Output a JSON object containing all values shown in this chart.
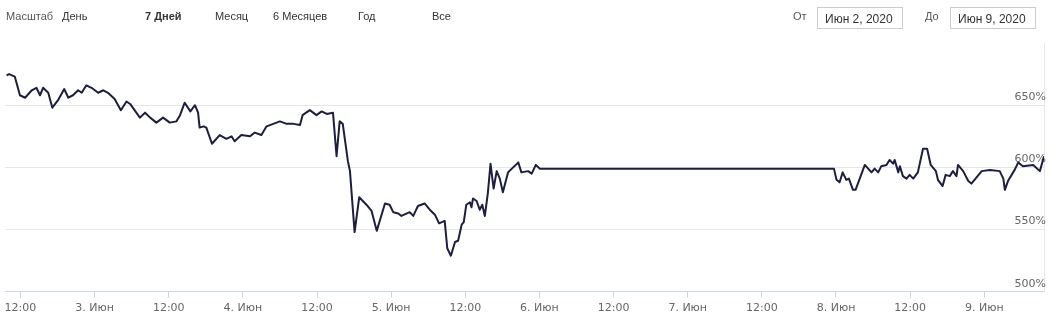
{
  "chart_data": {
    "type": "line",
    "color": "#1c1f3d",
    "grid": "y",
    "xlim": [
      "2020-06-02T09:30",
      "2020-06-09T09:40"
    ],
    "ylim": [
      500,
      700
    ],
    "xticks": [
      {
        "value": "2020-06-02T12:00",
        "label": "12:00"
      },
      {
        "value": "2020-06-03T00:00",
        "label": "3. Июн"
      },
      {
        "value": "2020-06-03T12:00",
        "label": "12:00"
      },
      {
        "value": "2020-06-04T00:00",
        "label": "4. Июн"
      },
      {
        "value": "2020-06-04T12:00",
        "label": "12:00"
      },
      {
        "value": "2020-06-05T00:00",
        "label": "5. Июн"
      },
      {
        "value": "2020-06-05T12:00",
        "label": "12:00"
      },
      {
        "value": "2020-06-06T00:00",
        "label": "6. Июн"
      },
      {
        "value": "2020-06-06T12:00",
        "label": "12:00"
      },
      {
        "value": "2020-06-07T00:00",
        "label": "7. Июн"
      },
      {
        "value": "2020-06-07T12:00",
        "label": "12:00"
      },
      {
        "value": "2020-06-08T00:00",
        "label": "8. Июн"
      },
      {
        "value": "2020-06-08T12:00",
        "label": "12:00"
      },
      {
        "value": "2020-06-09T00:00",
        "label": "9. Июн"
      }
    ],
    "yticks": [
      {
        "value": 500,
        "label": "500%"
      },
      {
        "value": 550,
        "label": "550%"
      },
      {
        "value": 600,
        "label": "600%"
      },
      {
        "value": 650,
        "label": "650%"
      }
    ],
    "annotations": [
      "Масштаб",
      "День",
      "7 Дней",
      "Месяц",
      "6 Месяцев",
      "Год",
      "Все",
      "От",
      "Июн 2, 2020",
      "До",
      "Июн 9, 2020"
    ],
    "x": [
      "2020-06-02T09:45",
      "2020-06-02T10:10",
      "2020-06-02T11:05",
      "2020-06-02T11:55",
      "2020-06-02T12:45",
      "2020-06-02T13:50",
      "2020-06-02T14:35",
      "2020-06-02T15:10",
      "2020-06-02T15:40",
      "2020-06-02T16:30",
      "2020-06-02T17:10",
      "2020-06-02T18:05",
      "2020-06-02T19:05",
      "2020-06-02T19:45",
      "2020-06-02T20:30",
      "2020-06-02T21:20",
      "2020-06-02T21:55",
      "2020-06-02T22:40",
      "2020-06-02T23:30",
      "2020-06-03T00:35",
      "2020-06-03T01:25",
      "2020-06-03T02:10",
      "2020-06-03T03:15",
      "2020-06-03T04:15",
      "2020-06-03T05:10",
      "2020-06-03T05:45",
      "2020-06-03T07:20",
      "2020-06-03T08:10",
      "2020-06-03T09:00",
      "2020-06-03T10:00",
      "2020-06-03T11:05",
      "2020-06-03T12:10",
      "2020-06-03T13:15",
      "2020-06-03T13:50",
      "2020-06-03T14:35",
      "2020-06-03T15:30",
      "2020-06-03T16:15",
      "2020-06-03T16:45",
      "2020-06-03T17:00",
      "2020-06-03T17:40",
      "2020-06-03T18:05",
      "2020-06-03T19:00",
      "2020-06-03T20:15",
      "2020-06-03T21:20",
      "2020-06-03T22:10",
      "2020-06-03T22:40",
      "2020-06-03T23:45",
      "2020-06-04T01:10",
      "2020-06-04T01:55",
      "2020-06-04T03:00",
      "2020-06-04T03:50",
      "2020-06-04T04:55",
      "2020-06-04T06:00",
      "2020-06-04T07:05",
      "2020-06-04T08:10",
      "2020-06-04T09:15",
      "2020-06-04T09:40",
      "2020-06-04T10:50",
      "2020-06-04T11:55",
      "2020-06-04T12:45",
      "2020-06-04T13:35",
      "2020-06-04T14:35",
      "2020-06-04T15:10",
      "2020-06-04T15:40",
      "2020-06-04T16:10",
      "2020-06-04T17:00",
      "2020-06-04T17:20",
      "2020-06-04T18:05",
      "2020-06-04T18:50",
      "2020-06-04T20:00",
      "2020-06-04T20:50",
      "2020-06-04T21:40",
      "2020-06-04T23:00",
      "2020-06-04T23:45",
      "2020-06-05T00:20",
      "2020-06-05T01:10",
      "2020-06-05T01:40",
      "2020-06-05T03:00",
      "2020-06-05T03:35",
      "2020-06-05T04:20",
      "2020-06-05T05:25",
      "2020-06-05T06:15",
      "2020-06-05T07:05",
      "2020-06-05T07:45",
      "2020-06-05T08:40",
      "2020-06-05T09:05",
      "2020-06-05T09:40",
      "2020-06-05T10:20",
      "2020-06-05T10:50",
      "2020-06-05T11:25",
      "2020-06-05T11:45",
      "2020-06-05T12:10",
      "2020-06-05T12:45",
      "2020-06-05T13:00",
      "2020-06-05T13:15",
      "2020-06-05T13:50",
      "2020-06-05T14:20",
      "2020-06-05T14:45",
      "2020-06-05T15:10",
      "2020-06-05T15:40",
      "2020-06-05T16:05",
      "2020-06-05T16:35",
      "2020-06-05T17:05",
      "2020-06-05T17:35",
      "2020-06-05T18:05",
      "2020-06-05T18:55",
      "2020-06-05T19:45",
      "2020-06-05T20:35",
      "2020-06-05T21:05",
      "2020-06-05T22:10",
      "2020-06-05T22:45",
      "2020-06-05T23:25",
      "2020-06-06T00:05",
      "2020-06-07T23:40",
      "2020-06-08T00:05",
      "2020-06-08T00:35",
      "2020-06-08T01:05",
      "2020-06-08T01:40",
      "2020-06-08T02:05",
      "2020-06-08T02:45",
      "2020-06-08T03:10",
      "2020-06-08T04:40",
      "2020-06-08T05:45",
      "2020-06-08T06:15",
      "2020-06-08T06:50",
      "2020-06-08T07:20",
      "2020-06-08T08:10",
      "2020-06-08T08:40",
      "2020-06-08T09:15",
      "2020-06-08T09:30",
      "2020-06-08T10:05",
      "2020-06-08T10:20",
      "2020-06-08T10:50",
      "2020-06-08T11:25",
      "2020-06-08T11:55",
      "2020-06-08T12:30",
      "2020-06-08T13:15",
      "2020-06-08T14:05",
      "2020-06-08T14:45",
      "2020-06-08T15:20",
      "2020-06-08T16:10",
      "2020-06-08T16:30",
      "2020-06-08T17:15",
      "2020-06-08T17:45",
      "2020-06-08T18:25",
      "2020-06-08T18:55",
      "2020-06-08T19:30",
      "2020-06-08T19:45",
      "2020-06-08T20:35",
      "2020-06-08T21:25",
      "2020-06-08T21:55",
      "2020-06-08T23:35",
      "2020-06-09T00:55",
      "2020-06-09T02:30",
      "2020-06-09T03:05",
      "2020-06-09T03:20",
      "2020-06-09T03:50",
      "2020-06-09T04:55",
      "2020-06-09T05:30",
      "2020-06-09T06:15",
      "2020-06-09T07:55",
      "2020-06-09T09:00",
      "2020-06-09T09:40"
    ],
    "values": [
      674,
      675,
      673,
      658,
      656,
      662,
      664,
      658,
      664,
      660,
      648,
      654,
      663,
      656,
      658,
      662,
      660,
      666,
      664,
      660,
      662,
      660,
      655,
      646,
      653,
      651,
      640,
      644,
      640,
      636,
      640,
      636,
      637,
      642,
      652,
      645,
      650,
      644,
      632,
      633,
      632,
      619,
      626,
      623,
      625,
      621,
      626,
      625,
      628,
      626,
      633,
      635,
      637,
      635,
      635,
      634,
      642,
      646,
      642,
      645,
      643,
      644,
      609,
      637,
      635,
      605,
      597,
      548,
      576,
      570,
      565,
      549,
      571,
      570,
      564,
      563,
      561,
      564,
      561,
      569,
      571,
      566,
      562,
      555,
      557,
      535,
      529,
      540,
      541,
      554,
      556,
      570,
      572,
      568,
      575,
      573,
      566,
      570,
      561,
      580,
      603,
      583,
      597,
      591,
      580,
      596,
      600,
      604,
      596,
      597,
      595,
      602,
      599,
      599,
      590,
      588,
      596,
      590,
      591,
      582,
      582,
      602,
      596,
      599,
      596,
      601,
      602,
      606,
      603,
      606,
      596,
      601,
      593,
      591,
      594,
      591,
      596,
      615,
      615,
      602,
      597,
      590,
      585,
      594,
      593,
      597,
      593,
      602,
      597,
      589,
      587,
      597,
      598,
      597,
      591,
      582,
      589,
      598,
      604,
      601,
      602,
      597,
      609
    ]
  }
}
